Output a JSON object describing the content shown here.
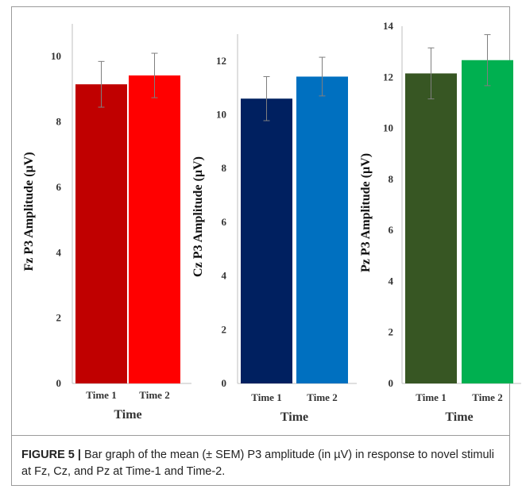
{
  "caption": {
    "label": "FIGURE 5",
    "separator": " | ",
    "text": "Bar graph of the mean (± SEM) P3 amplitude (in µV) in response to novel stimuli at Fz, Cz, and Pz at Time-1 and Time-2."
  },
  "chart_data": [
    {
      "type": "bar",
      "xlabel": "Time",
      "ylabel": "Fz P3 Amplitude (µV)",
      "categories": [
        "Time 1",
        "Time 2"
      ],
      "values": [
        9.15,
        9.42
      ],
      "errors": [
        0.7,
        0.68
      ],
      "colors": [
        "#c00000",
        "#ff0000"
      ],
      "ylim": [
        0,
        11
      ],
      "yticks": [
        0,
        2,
        4,
        6,
        8,
        10
      ]
    },
    {
      "type": "bar",
      "xlabel": "Time",
      "ylabel": "Cz P3 Amplitude (µV)",
      "categories": [
        "Time 1",
        "Time 2"
      ],
      "values": [
        10.6,
        11.42
      ],
      "errors": [
        0.82,
        0.72
      ],
      "colors": [
        "#002060",
        "#0070c0"
      ],
      "ylim": [
        0,
        13
      ],
      "yticks": [
        0,
        2,
        4,
        6,
        8,
        10,
        12
      ]
    },
    {
      "type": "bar",
      "xlabel": "Time",
      "ylabel": "Pz P3 Amplitude (µV)",
      "categories": [
        "Time 1",
        "Time 2"
      ],
      "values": [
        12.15,
        12.67
      ],
      "errors": [
        1.0,
        1.0
      ],
      "colors": [
        "#375623",
        "#00b050"
      ],
      "ylim": [
        0,
        14
      ],
      "yticks": [
        0,
        2,
        4,
        6,
        8,
        10,
        12,
        14
      ]
    }
  ]
}
